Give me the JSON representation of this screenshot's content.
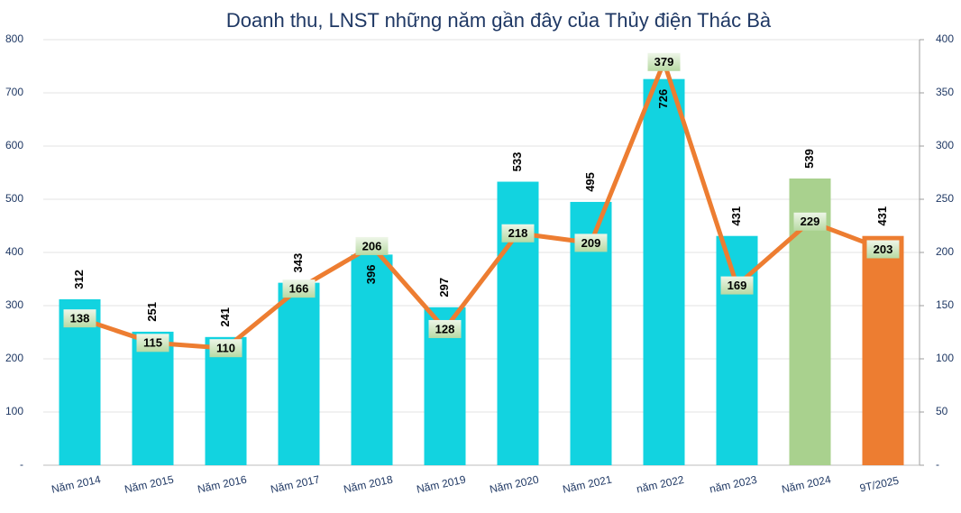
{
  "chart_data": {
    "type": "bar-line",
    "title": "Doanh thu, LNST những năm gần đây của Thủy điện Thác Bà",
    "categories": [
      "Năm 2014",
      "Năm 2015",
      "Năm 2016",
      "Năm 2017",
      "Năm 2018",
      "Năm 2019",
      "Năm 2020",
      "Năm 2021",
      "năm 2022",
      "năm 2023",
      "Năm 2024",
      "9T/2025"
    ],
    "series": [
      {
        "type": "bar",
        "colors": [
          "#12d3e0",
          "#12d3e0",
          "#12d3e0",
          "#12d3e0",
          "#12d3e0",
          "#12d3e0",
          "#12d3e0",
          "#12d3e0",
          "#12d3e0",
          "#12d3e0",
          "#a9d18e",
          "#ed7d31"
        ],
        "values": [
          312,
          251,
          241,
          343,
          396,
          297,
          533,
          495,
          726,
          431,
          539,
          431
        ]
      },
      {
        "type": "line",
        "axis": "y2",
        "color": "#ed7d31",
        "values": [
          138,
          115,
          110,
          166,
          206,
          128,
          218,
          209,
          379,
          169,
          229,
          203
        ]
      }
    ],
    "ylim": [
      0,
      800
    ],
    "yticks": [
      {
        "value": 0,
        "label": "-"
      },
      100,
      200,
      300,
      400,
      500,
      600,
      700,
      800
    ],
    "y2lim": [
      0,
      400
    ],
    "y2ticks": [
      {
        "value": 0,
        "label": "-"
      },
      50,
      100,
      150,
      200,
      250,
      300,
      350,
      400
    ],
    "grid": true
  }
}
